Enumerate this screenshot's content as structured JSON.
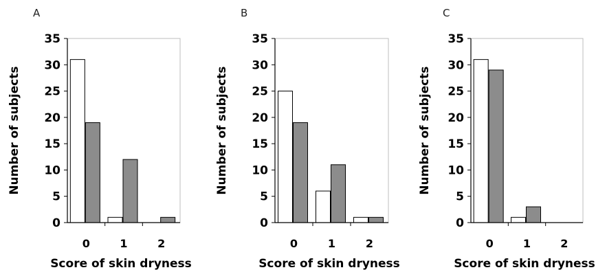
{
  "chart_data": [
    {
      "type": "bar",
      "panel_label": "A",
      "categories": [
        "0",
        "1",
        "2"
      ],
      "series": [
        {
          "values": [
            31,
            1,
            0
          ],
          "color": "#ffffff"
        },
        {
          "values": [
            19,
            12,
            1
          ],
          "color": "#8c8c8c"
        }
      ],
      "xlabel": "Score of skin dryness",
      "ylabel": "Number of subjects",
      "ylim": [
        0,
        35
      ],
      "yticks": [
        0,
        5,
        10,
        15,
        20,
        25,
        30,
        35
      ],
      "grid": false
    },
    {
      "type": "bar",
      "panel_label": "B",
      "categories": [
        "0",
        "1",
        "2"
      ],
      "series": [
        {
          "values": [
            25,
            6,
            1
          ],
          "color": "#ffffff"
        },
        {
          "values": [
            19,
            11,
            1
          ],
          "color": "#8c8c8c"
        }
      ],
      "xlabel": "Score of skin dryness",
      "ylabel": "Number of subjects",
      "ylim": [
        0,
        35
      ],
      "yticks": [
        0,
        5,
        10,
        15,
        20,
        25,
        30,
        35
      ],
      "grid": false
    },
    {
      "type": "bar",
      "panel_label": "C",
      "categories": [
        "0",
        "1",
        "2"
      ],
      "series": [
        {
          "values": [
            31,
            1,
            0
          ],
          "color": "#ffffff"
        },
        {
          "values": [
            29,
            3,
            0
          ],
          "color": "#8c8c8c"
        }
      ],
      "xlabel": "Score of skin dryness",
      "ylabel": "Number of subjects",
      "ylim": [
        0,
        35
      ],
      "yticks": [
        0,
        5,
        10,
        15,
        20,
        25,
        30,
        35
      ],
      "grid": false
    }
  ]
}
